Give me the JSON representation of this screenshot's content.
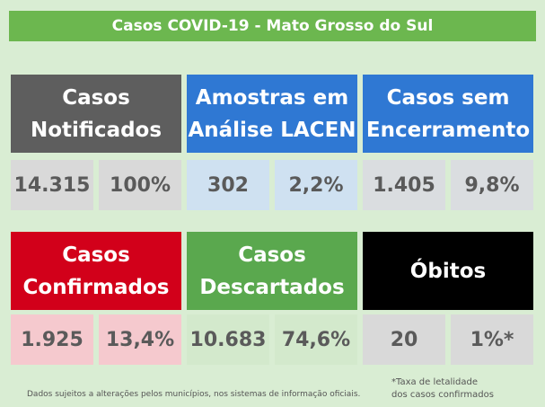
{
  "title": "Casos COVID-19 - Mato Grosso do Sul",
  "cards": [
    {
      "label_lines": [
        "Casos",
        "Notificados"
      ],
      "values": [
        "14.315",
        "100%"
      ]
    },
    {
      "label_lines": [
        "Amostras em",
        "Análise LACEN"
      ],
      "values": [
        "302",
        "2,2%"
      ]
    },
    {
      "label_lines": [
        "Casos sem",
        "Encerramento"
      ],
      "values": [
        "1.405",
        "9,8%"
      ]
    },
    {
      "label_lines": [
        "Casos",
        "Confirmados"
      ],
      "values": [
        "1.925",
        "13,4%"
      ]
    },
    {
      "label_lines": [
        "Casos",
        "Descartados"
      ],
      "values": [
        "10.683",
        "74,6%"
      ]
    },
    {
      "label_lines": [
        "Óbitos"
      ],
      "values": [
        "20",
        "1%*"
      ]
    }
  ],
  "footer": "Dados sujeitos a alterações pelos municípios, nos sistemas de informação oficiais.",
  "note_lines": [
    "*Taxa de letalidade",
    "dos casos confirmados"
  ]
}
